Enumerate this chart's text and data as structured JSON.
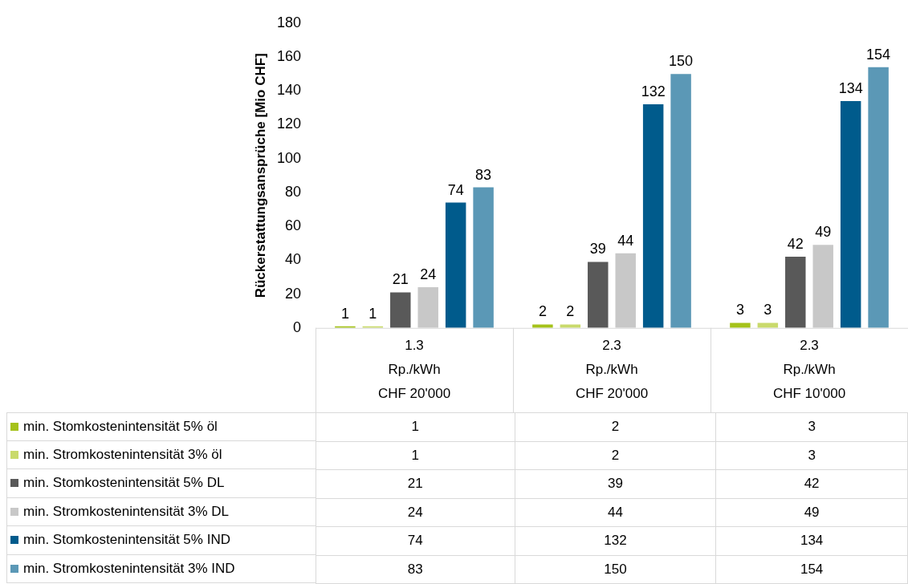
{
  "chart_data": [
    {
      "type": "bar",
      "ylabel": "Rückerstattungsansprüche [Mio CHF]",
      "categories": [
        "1.3\nRp./kWh\nCHF 20'000",
        "2.3\nRp./kWh\nCHF 20'000",
        "2.3\nRp./kWh\nCHF 10'000"
      ],
      "series": [
        {
          "name": "min. Stomkostenintensität 5% öl",
          "color": "#a5c21a",
          "values": [
            1,
            2,
            3
          ]
        },
        {
          "name": "min. Stromkostenintensität 3%  öl",
          "color": "#c9da6c",
          "values": [
            1,
            2,
            3
          ]
        },
        {
          "name": "min. Stomkostenintensität 5% DL",
          "color": "#595959",
          "values": [
            21,
            39,
            42
          ]
        },
        {
          "name": "min. Stromkostenintensität 3% DL",
          "color": "#c8c8c8",
          "values": [
            24,
            44,
            49
          ]
        },
        {
          "name": "min. Stomkostenintensität 5% IND",
          "color": "#005b8c",
          "values": [
            74,
            132,
            134
          ]
        },
        {
          "name": "min. Stromkostenintensität 3% IND",
          "color": "#5b98b6",
          "values": [
            83,
            150,
            154
          ]
        }
      ],
      "ylim": [
        0,
        180
      ],
      "yticks": [
        0,
        20,
        40,
        60,
        80,
        100,
        120,
        140,
        160,
        180
      ],
      "grid": false,
      "legend": "bottom",
      "data_labels": true
    },
    {
      "type": "other",
      "annotations": [
        "1",
        "2",
        "3",
        "1",
        "2",
        "3",
        "21",
        "39",
        "42",
        "24",
        "44",
        "49",
        "74",
        "132",
        "134",
        "83",
        "150",
        "154"
      ]
    }
  ]
}
